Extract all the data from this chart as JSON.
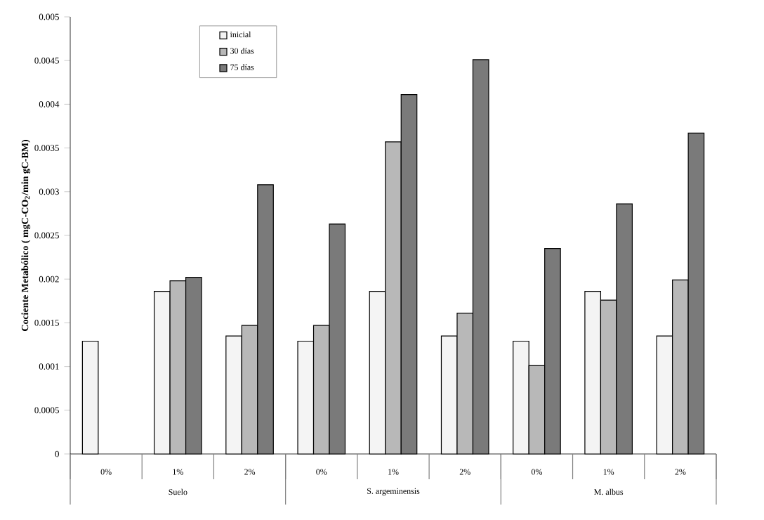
{
  "chart_data": {
    "type": "bar",
    "ylabel": "Cociente Metabólico ( mgC-CO$_{2}$/min gC-BM)",
    "categories": [
      "0%",
      "1%",
      "2%",
      "0%",
      "1%",
      "2%",
      "0%",
      "1%",
      "2%"
    ],
    "annotations": [
      "Suelo",
      "S. argeminensis",
      "M. albus"
    ],
    "series": [
      {
        "name": "inicial",
        "color": "#f4f4f4",
        "values": [
          0.00129,
          0.00186,
          0.00135,
          0.00129,
          0.00186,
          0.00135,
          0.00129,
          0.00186,
          0.00135
        ]
      },
      {
        "name": "30 días",
        "color": "#b8b8b8",
        "values": [
          null,
          0.00198,
          0.00147,
          0.00147,
          0.00357,
          0.00161,
          0.00101,
          0.00176,
          0.00199
        ]
      },
      {
        "name": "75 días",
        "color": "#7a7a7a",
        "values": [
          null,
          0.00202,
          0.00308,
          0.00263,
          0.00411,
          0.00451,
          0.00235,
          0.00286,
          0.00367
        ]
      }
    ],
    "ylim": [
      0,
      0.005
    ],
    "yticks": [
      0,
      0.0005,
      0.001,
      0.0015,
      0.002,
      0.0025,
      0.003,
      0.0035,
      0.004,
      0.0045,
      0.005
    ],
    "legend": "top left"
  }
}
